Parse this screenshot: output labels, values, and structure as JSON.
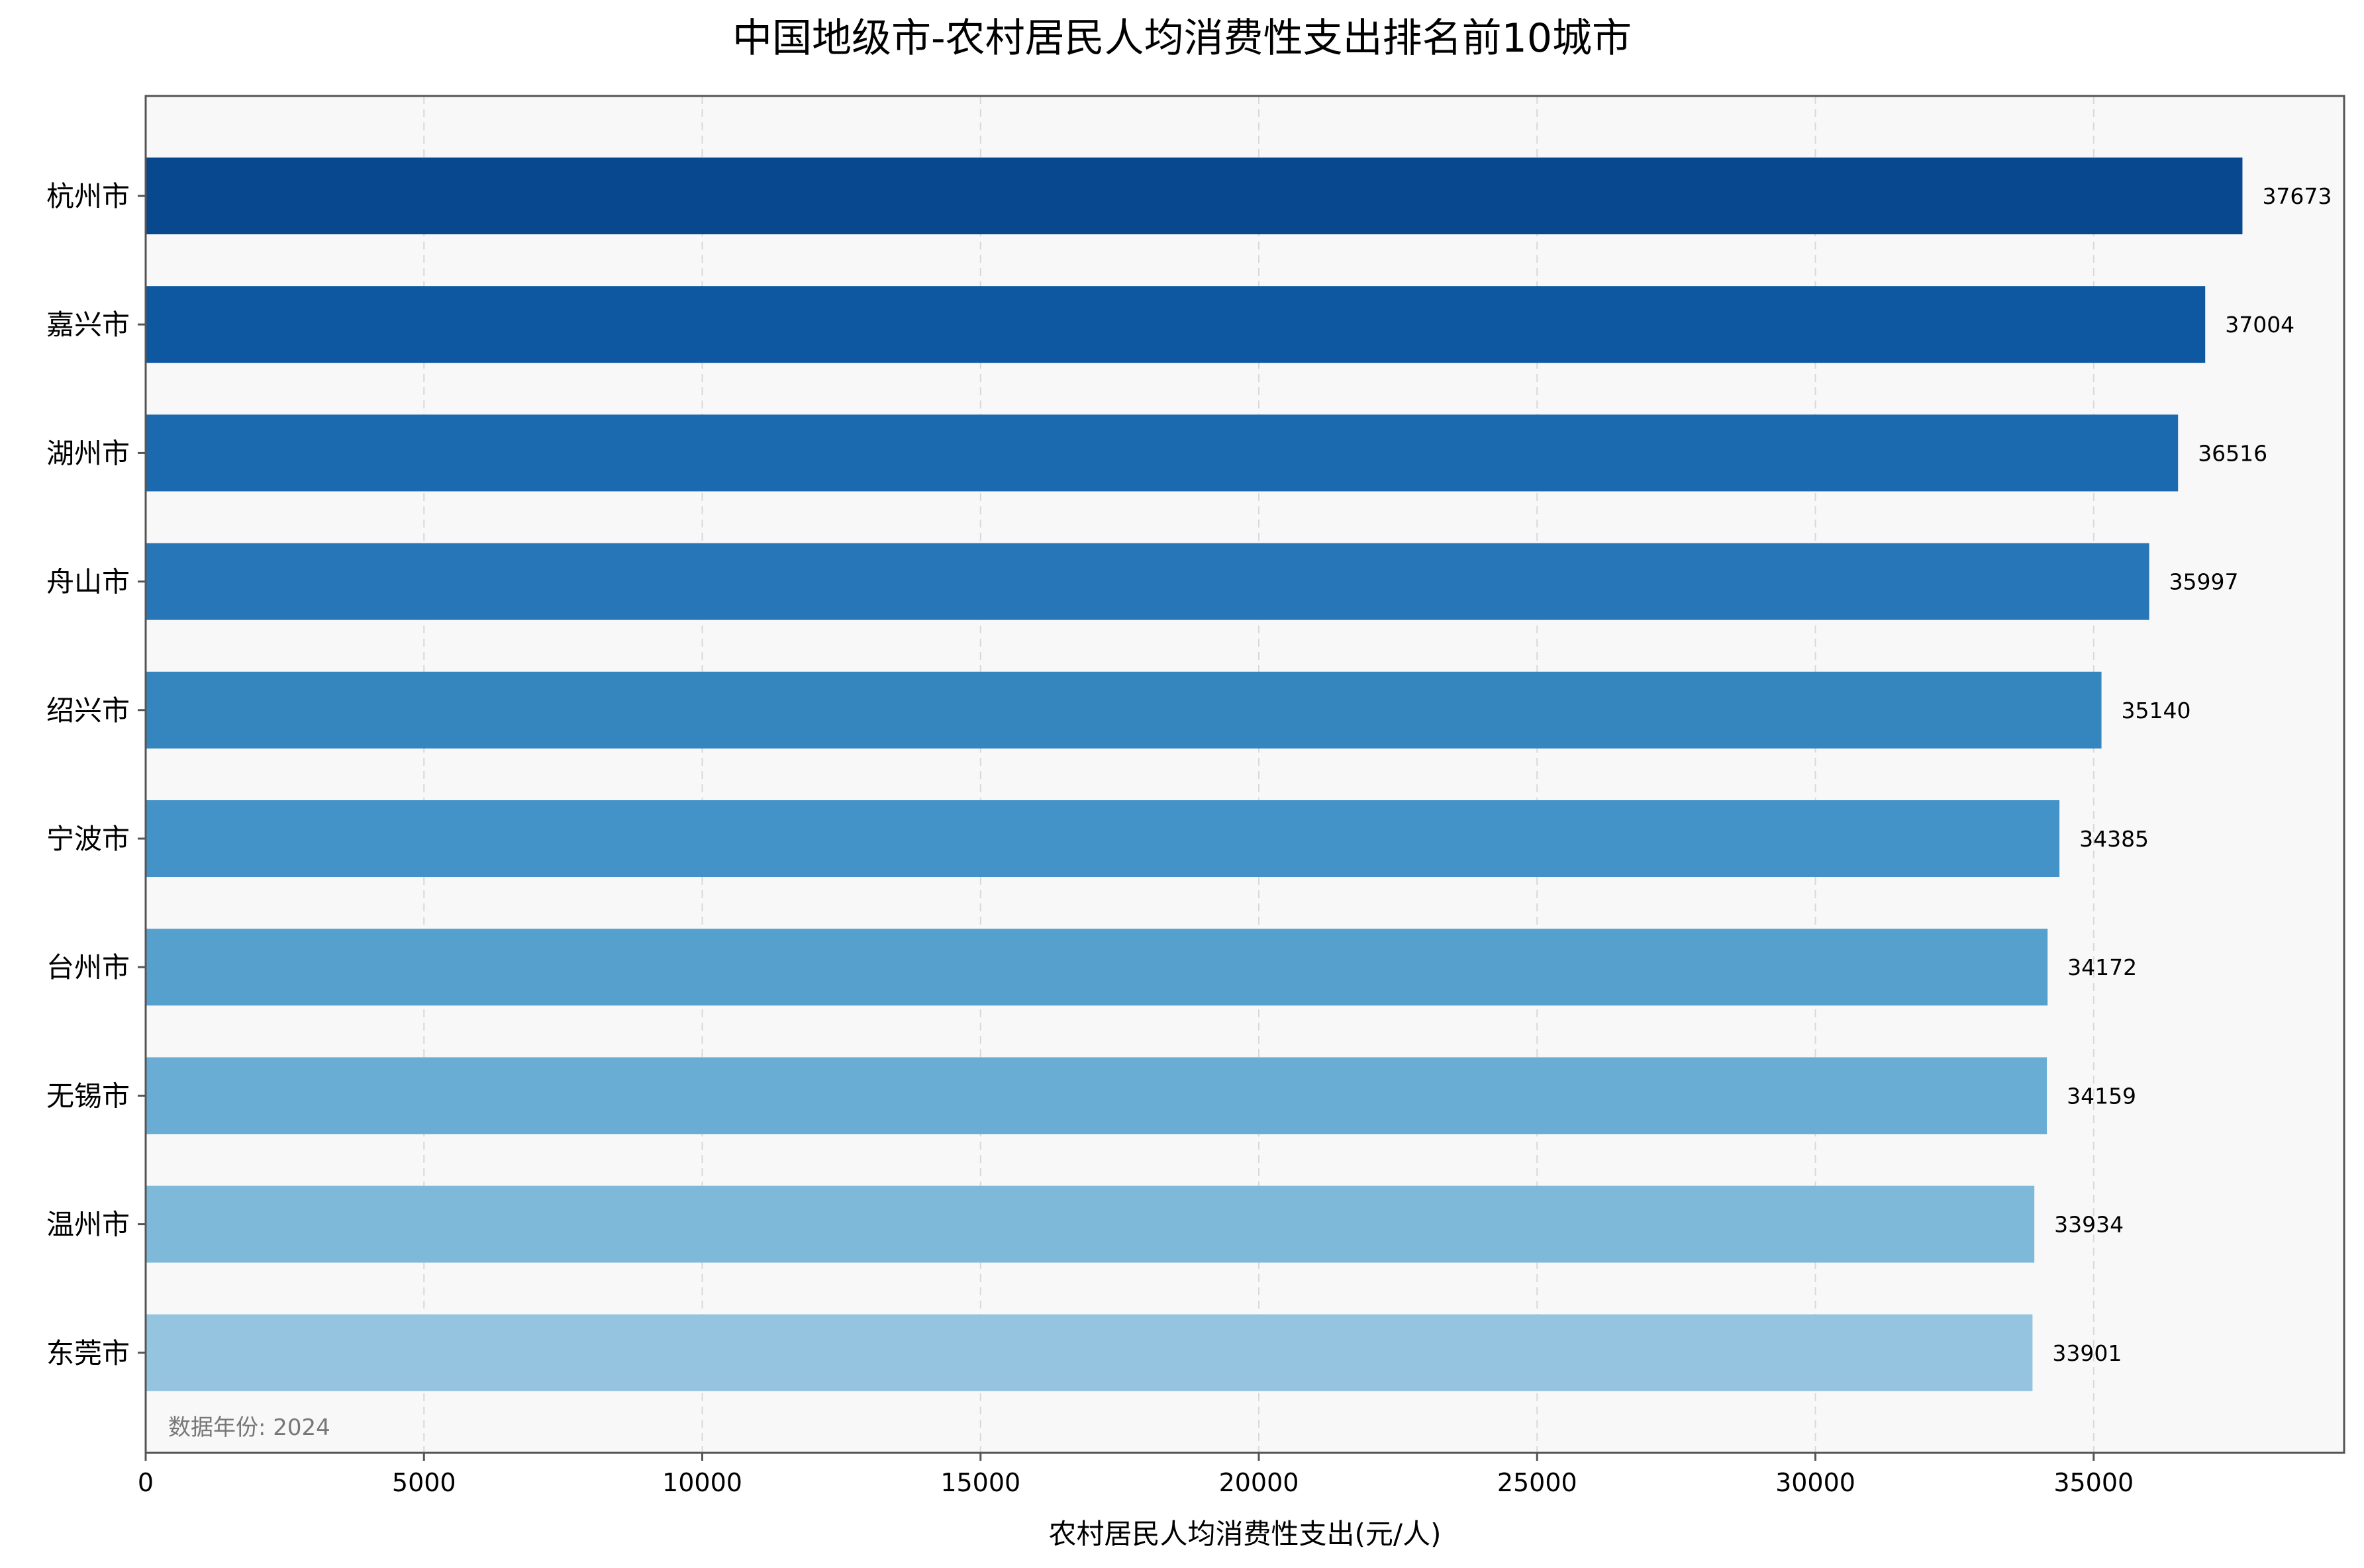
{
  "chart_data": {
    "type": "bar",
    "orientation": "horizontal",
    "title": "中国地级市-农村居民人均消费性支出排名前10城市",
    "xlabel": "农村居民人均消费性支出(元/人)",
    "ylabel": "",
    "xlim": [
      0,
      39500
    ],
    "xticks": [
      0,
      5000,
      10000,
      15000,
      20000,
      25000,
      30000,
      35000
    ],
    "grid": "vertical dashed",
    "categories": [
      "杭州市",
      "嘉兴市",
      "湖州市",
      "舟山市",
      "绍兴市",
      "宁波市",
      "台州市",
      "无锡市",
      "温州市",
      "东莞市"
    ],
    "values": [
      37673,
      37004,
      36516,
      35997,
      35140,
      34385,
      34172,
      34159,
      33934,
      33901
    ],
    "colors": [
      "#08488e",
      "#0e58a2",
      "#1b69af",
      "#2676b8",
      "#3585bf",
      "#4393c8",
      "#56a0ce",
      "#69add5",
      "#7fb9da",
      "#94c4df"
    ],
    "annotation": "数据年份: 2024"
  }
}
